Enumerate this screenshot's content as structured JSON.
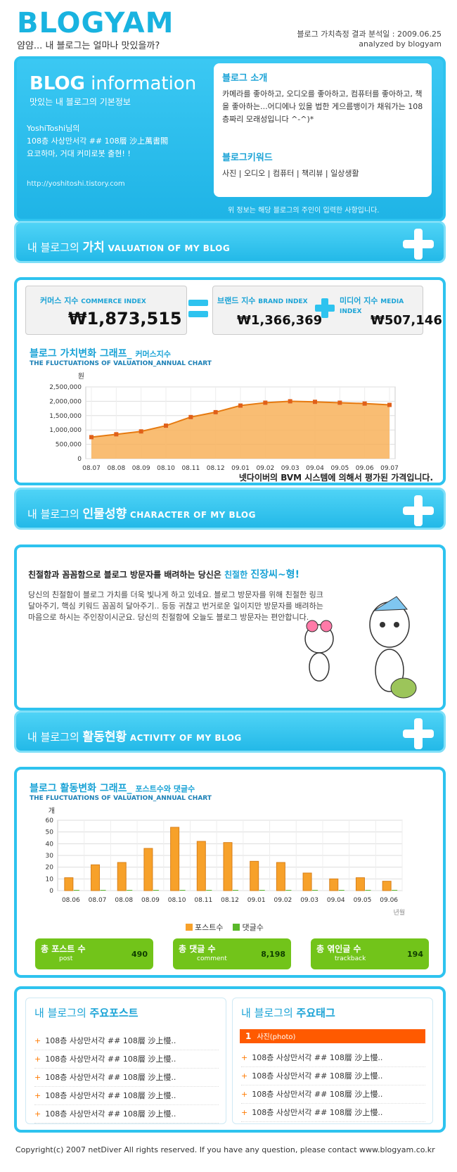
{
  "header": {
    "logo": "BLOGYAM",
    "tagline": "얌얌... 내 블로그는 얼마나 맛있을까?",
    "analysis_date": "블로그 가치측정 결과 분석일 : 2009.06.25",
    "analyzed_by": "analyzed by blogyam"
  },
  "info": {
    "title_bold": "BLOG",
    "title_rest": " information",
    "subtitle": "맛있는 내 블로그의 기본정보",
    "owner_line1": "YoshiToshi님의",
    "owner_line2": "108층 사상만서각 ## 108層 沙上萬書閣",
    "owner_line3": "요코하마, 거대 커미로봇 출현! !",
    "url": "http://yoshitoshi.tistory.com",
    "intro_heading": "블로그 소개",
    "intro_text": "카메라를 좋아하고, 오디오를 좋아하고, 컴퓨터를 좋아하고, 책을 좋아하는...어디에나 있을 법한 게으름뱅이가 채워가는 108층짜리 모래성입니다 ^-^)*",
    "keyword_heading": "블로그키워드",
    "keywords": "사진 | 오디오 | 컴퓨터 | 책리뷰 | 일상생활",
    "note": "위 정보는 해당 블로그의 주인이 입력한 사항입니다."
  },
  "valuation": {
    "title_pre": "내 블로그의 ",
    "title_bold": "가치",
    "title_en": "VALUATION OF MY BLOG",
    "commerce_label_ko": "커머스 지수",
    "commerce_label_en": "COMMERCE INDEX",
    "commerce_value": "₩1,873,515",
    "brand_label_ko": "브랜드 지수",
    "brand_label_en": "BRAND INDEX",
    "brand_value": "₩1,366,369",
    "media_label_ko": "미디어 지수",
    "media_label_en": "MEDIA INDEX",
    "media_value": "₩507,146",
    "chart_heading": "블로그 가치변화 그래프_",
    "chart_heading_small": "커머스지수",
    "chart_sub": "THE FLUCTUATIONS OF VALUATION_ANNUAL CHART",
    "unit": "원",
    "footnote": "넷다이버의 BVM 시스템에 의해서 평가된 가격입니다."
  },
  "character": {
    "title_pre": "내 블로그의 ",
    "title_bold": "인물성향",
    "title_en": "CHARACTER OF MY BLOG",
    "headline_pre": "친절함과 꼼꼼함으로 블로그 방문자를 배려하는 당신은 ",
    "headline_kind": "친절한 ",
    "headline_type": "진장씨~형!",
    "body": "당신의 친절함이 블로그 가치를 더욱 빛나게 하고 있네요. 블로그 방문자를 위해 친절한 링크 달아주기, 핵심 키워드 꼼꼼히 달아주기.. 등등 귀찮고 번거로운 일이지만 방문자를 배려하는 마음으로 하시는 주인장이시군요. 당신의 친절함에 오늘도 블로그 방문자는 편안합니다."
  },
  "activity": {
    "title_pre": "내 블로그의 ",
    "title_bold": "활동현황",
    "title_en": "ACTIVITY OF MY BLOG",
    "chart_heading": "블로그 활동변화 그래프_",
    "chart_heading_small": "포스트수와 댓글수",
    "chart_sub": "THE FLUCTUATIONS OF VALUATION_ANNUAL CHART",
    "unit": "개",
    "xunit": "년월",
    "legend_posts": "포스트수",
    "legend_comments": "댓글수",
    "stats": [
      {
        "label": "총 포스트 수",
        "en": "post",
        "value": "490"
      },
      {
        "label": "총 댓글 수",
        "en": "comment",
        "value": "8,198"
      },
      {
        "label": "총 엮인글 수",
        "en": "trackback",
        "value": "194"
      }
    ]
  },
  "top_posts": {
    "heading_pre": "내 블로그의 ",
    "heading_bold": "주요포스트",
    "items": [
      "108층 사상만서각 ## 108層 沙上慢..",
      "108층 사상만서각 ## 108層 沙上慢..",
      "108층 사상만서각 ## 108層 沙上慢..",
      "108층 사상만서각 ## 108層 沙上慢..",
      "108층 사상만서각 ## 108層 沙上慢.."
    ]
  },
  "top_tags": {
    "heading_pre": "내 블로그의 ",
    "heading_bold": "주요태그",
    "first_rank": "1",
    "first_tag": "사진(photo)",
    "items": [
      "108층 사상만서각 ## 108層 沙上慢..",
      "108층 사상만서각 ## 108層 沙上慢..",
      "108층 사상만서각 ## 108層 沙上慢..",
      "108층 사상만서각 ## 108層 沙上慢.."
    ]
  },
  "footer": "Copyright(c) 2007 netDiver All rights reserved. If you have any question, please contact www.blogyam.co.kr",
  "colors": {
    "accent": "#2ec3ef",
    "bar": "#f7a12a",
    "area": "#f8b25a",
    "green": "#72c41a",
    "tag": "#ff5a00"
  },
  "chart_data": [
    {
      "type": "area",
      "x": [
        "08.07",
        "08.08",
        "08.09",
        "08.10",
        "08.11",
        "08.12",
        "09.01",
        "09.02",
        "09.03",
        "09.04",
        "09.05",
        "09.06",
        "09.07"
      ],
      "series": [
        {
          "values": [
            750000,
            850000,
            950000,
            1150000,
            1450000,
            1620000,
            1850000,
            1950000,
            2000000,
            1980000,
            1950000,
            1920000,
            1873515
          ]
        }
      ],
      "yticks": [
        "2,500,000",
        "2,000,000",
        "1,500,000",
        "1,000,000",
        "500,000",
        "0"
      ],
      "ylim": [
        0,
        2500000
      ],
      "grid": true
    },
    {
      "type": "bar",
      "categories": [
        "08.06",
        "08.07",
        "08.08",
        "08.09",
        "08.10",
        "08.11",
        "08.12",
        "09.01",
        "09.02",
        "09.03",
        "09.04",
        "09.05",
        "09.06"
      ],
      "series": [
        {
          "name": "포스트수",
          "values": [
            11,
            22,
            24,
            36,
            54,
            42,
            41,
            25,
            24,
            15,
            10,
            11,
            8
          ]
        },
        {
          "name": "댓글수",
          "values": [
            0,
            0,
            0,
            0,
            0,
            0,
            0,
            0,
            0,
            0,
            0,
            0,
            0
          ]
        }
      ],
      "yticks": [
        "60",
        "50",
        "40",
        "30",
        "20",
        "10",
        "0"
      ],
      "ylim": [
        0,
        60
      ],
      "grid": true,
      "legend": "bottom"
    }
  ]
}
